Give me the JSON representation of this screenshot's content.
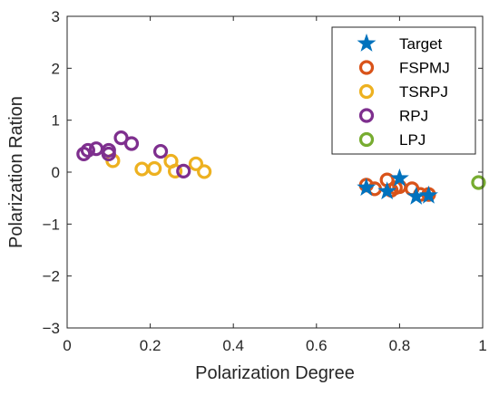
{
  "chart_data": {
    "type": "scatter",
    "title": "",
    "xlabel": "Polarization Degree",
    "ylabel": "Polarization Ration",
    "xlim": [
      0,
      1
    ],
    "ylim": [
      -3,
      3
    ],
    "xticks": [
      "0",
      "0.2",
      "0.4",
      "0.6",
      "0.8",
      "1"
    ],
    "yticks": [
      "3",
      "2",
      "1",
      "0",
      "−1",
      "−2",
      "−3"
    ],
    "grid": false,
    "legend_position": "top-right",
    "series": [
      {
        "name": "Target",
        "marker": "star",
        "color": "#0072BD",
        "points": [
          [
            0.72,
            -0.3
          ],
          [
            0.8,
            -0.12
          ],
          [
            0.77,
            -0.37
          ],
          [
            0.84,
            -0.47
          ],
          [
            0.87,
            -0.45
          ]
        ]
      },
      {
        "name": "FSPMJ",
        "marker": "circle",
        "color": "#D95319",
        "points": [
          [
            0.72,
            -0.25
          ],
          [
            0.74,
            -0.32
          ],
          [
            0.77,
            -0.15
          ],
          [
            0.78,
            -0.35
          ],
          [
            0.79,
            -0.3
          ],
          [
            0.8,
            -0.28
          ],
          [
            0.83,
            -0.32
          ],
          [
            0.85,
            -0.43
          ],
          [
            0.87,
            -0.43
          ]
        ]
      },
      {
        "name": "TSRPJ",
        "marker": "circle",
        "color": "#EDB120",
        "points": [
          [
            0.11,
            0.22
          ],
          [
            0.18,
            0.06
          ],
          [
            0.21,
            0.07
          ],
          [
            0.25,
            0.21
          ],
          [
            0.26,
            0.02
          ],
          [
            0.31,
            0.16
          ],
          [
            0.33,
            0.01
          ]
        ]
      },
      {
        "name": "RPJ",
        "marker": "circle",
        "color": "#7E2F8E",
        "points": [
          [
            0.04,
            0.35
          ],
          [
            0.05,
            0.42
          ],
          [
            0.07,
            0.45
          ],
          [
            0.1,
            0.35
          ],
          [
            0.1,
            0.42
          ],
          [
            0.13,
            0.66
          ],
          [
            0.155,
            0.55
          ],
          [
            0.225,
            0.4
          ],
          [
            0.28,
            0.02
          ]
        ]
      },
      {
        "name": "LPJ",
        "marker": "circle",
        "color": "#77AC30",
        "points": [
          [
            0.99,
            -0.2
          ]
        ]
      }
    ]
  }
}
